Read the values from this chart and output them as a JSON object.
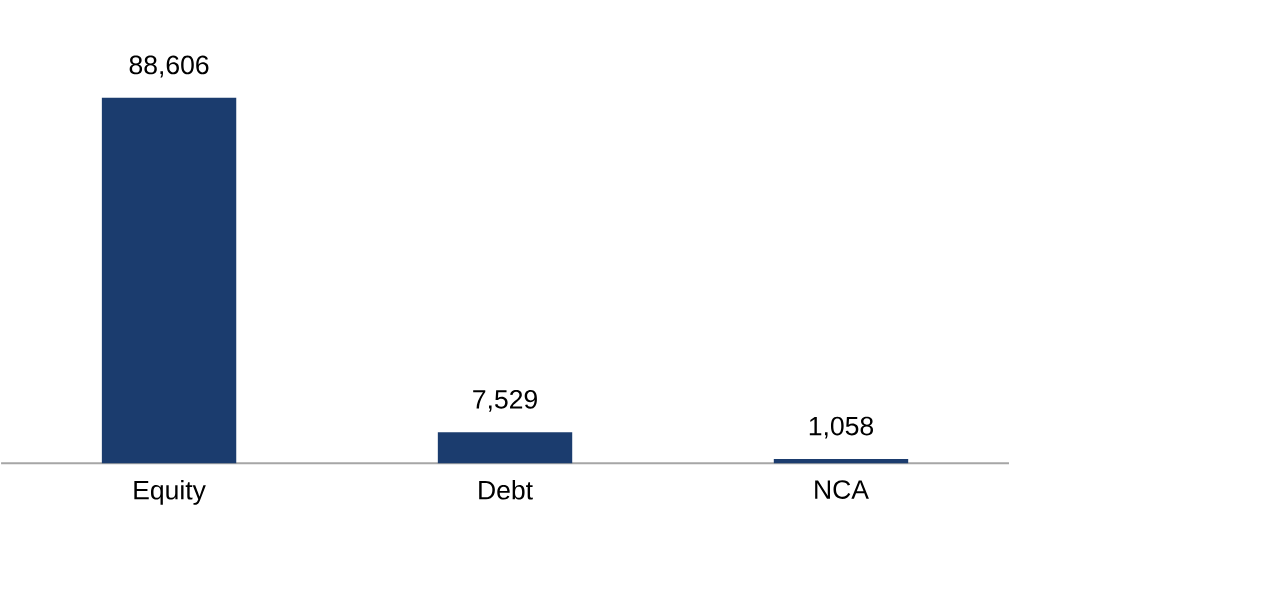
{
  "chart_data": {
    "type": "bar",
    "categories": [
      "Equity",
      "Debt",
      "NCA"
    ],
    "values": [
      88606,
      7529,
      1058
    ],
    "color": "#1b3c6e",
    "data_labels": true,
    "value_labels": [
      "88,606",
      "7,529",
      "1,058"
    ]
  }
}
